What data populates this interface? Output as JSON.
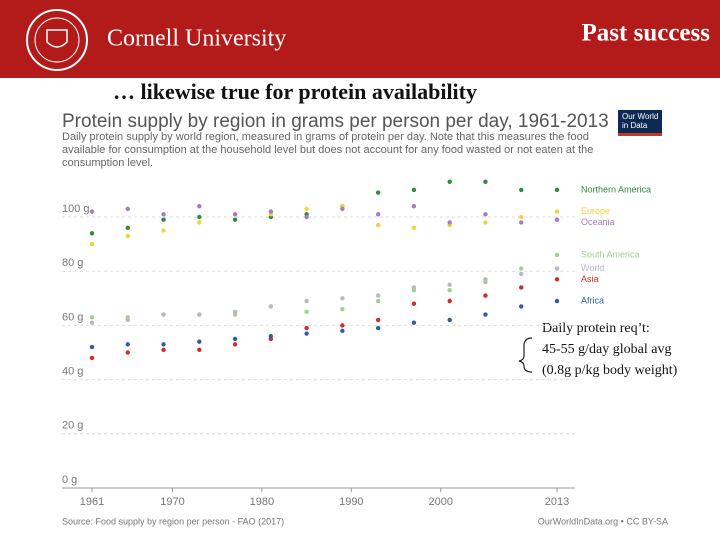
{
  "header": {
    "university": "Cornell University",
    "section": "Past success"
  },
  "slide_subtitle": "… likewise true for protein availability",
  "logo": {
    "line1": "Our World",
    "line2": "in Data"
  },
  "chart_data": {
    "type": "line",
    "title": "Protein supply by region in grams per person per day, 1961-2013",
    "subtitle": "Daily protein supply by world region, measured in grams of protein per day. Note that this measures the food available for consumption at the household level but does not account for any food wasted or not eaten at the consumption level.",
    "source": "Source: Food supply by region per person - FAO (2017)",
    "credit": "OurWorldInData.org • CC BY-SA",
    "x": [
      1961,
      1965,
      1969,
      1973,
      1977,
      1981,
      1985,
      1989,
      1993,
      1997,
      2001,
      2005,
      2009,
      2013
    ],
    "xlim": [
      1961,
      2013
    ],
    "xticks": [
      1961,
      1970,
      1980,
      1990,
      2000,
      2013
    ],
    "ylim": [
      0,
      115
    ],
    "yticks": [
      {
        "value": 0,
        "label": "0 g"
      },
      {
        "value": 20,
        "label": "20 g"
      },
      {
        "value": 40,
        "label": "40 g"
      },
      {
        "value": 60,
        "label": "60 g"
      },
      {
        "value": 80,
        "label": "80 g"
      },
      {
        "value": 100,
        "label": "100 g"
      }
    ],
    "grid": true,
    "series": [
      {
        "name": "Northern America",
        "color": "#2e8b3a",
        "values": [
          94,
          96,
          99,
          100,
          99,
          100,
          101,
          104,
          109,
          110,
          113,
          113,
          110,
          110
        ]
      },
      {
        "name": "Europe",
        "color": "#f2d33b",
        "values": [
          90,
          93,
          95,
          98,
          101,
          101,
          103,
          104,
          97,
          96,
          97,
          98,
          100,
          102
        ]
      },
      {
        "name": "Oceania",
        "color": "#a67bc4",
        "values": [
          102,
          103,
          101,
          104,
          101,
          102,
          100,
          103,
          101,
          104,
          98,
          101,
          98,
          99
        ]
      },
      {
        "name": "South America",
        "color": "#9fd18b",
        "values": [
          63,
          63,
          64,
          64,
          64,
          67,
          65,
          66,
          69,
          73,
          73,
          77,
          81,
          86
        ]
      },
      {
        "name": "World",
        "color": "#b8b8c4",
        "values": [
          61,
          62,
          64,
          64,
          65,
          67,
          69,
          70,
          71,
          74,
          75,
          76,
          79,
          81
        ]
      },
      {
        "name": "Asia",
        "color": "#d12b2b",
        "values": [
          48,
          50,
          51,
          51,
          53,
          55,
          59,
          60,
          62,
          68,
          69,
          71,
          74,
          77
        ]
      },
      {
        "name": "Africa",
        "color": "#2f5da8",
        "values": [
          52,
          53,
          53,
          54,
          55,
          56,
          57,
          58,
          59,
          61,
          62,
          64,
          67,
          69
        ]
      }
    ]
  },
  "annotation": [
    "Daily protein req’t:",
    "45-55 g/day global avg",
    "(0.8g p/kg body weight)"
  ]
}
